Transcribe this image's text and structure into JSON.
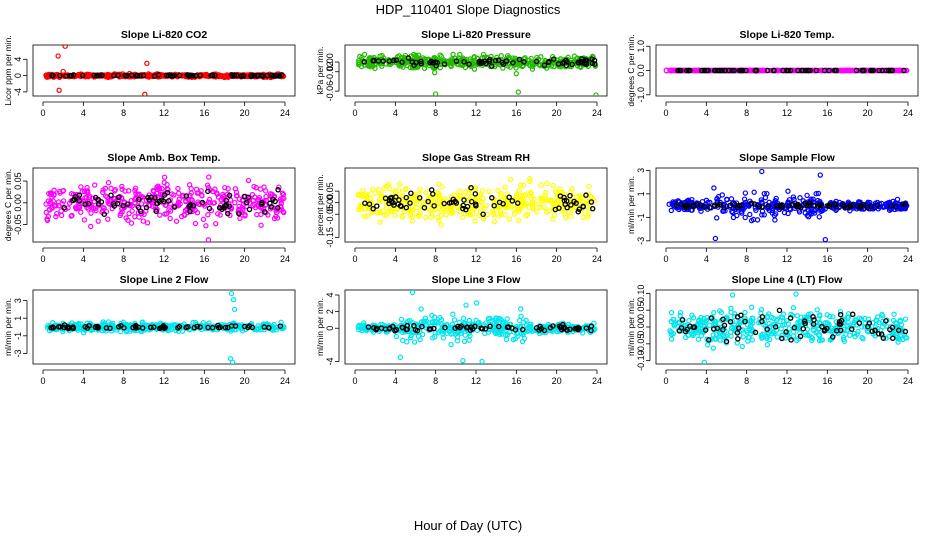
{
  "figure": {
    "title": "HDP_110401  Slope Diagnostics",
    "xlabel": "Hour of Day (UTC)"
  },
  "colors": {
    "red": "#ff0000",
    "green": "#22bb00",
    "magenta": "#ff00ff",
    "yellow": "#ffff00",
    "blue": "#0000ff",
    "cyan": "#00e5ee",
    "black": "#000000"
  },
  "chart_data": [
    {
      "type": "scatter",
      "title": "Slope Li-820 CO2",
      "ylabel": "Licor ppm per min.",
      "xlim": [
        0,
        24
      ],
      "xticks": [
        "0",
        "4",
        "8",
        "12",
        "16",
        "20",
        "24"
      ],
      "ylim": [
        -5,
        7.5
      ],
      "yticks": [
        {
          "v": -4,
          "t": "-4"
        },
        {
          "v": 0,
          "t": "0"
        },
        {
          "v": 4,
          "t": "4"
        }
      ],
      "color": "red",
      "spread": 0.35,
      "outliers": [
        [
          2.2,
          7.2
        ],
        [
          1.5,
          4.8
        ],
        [
          1.6,
          -3.6
        ],
        [
          10.3,
          3.0
        ],
        [
          10.1,
          -4.6
        ],
        [
          2.0,
          1.0
        ]
      ],
      "black_spread": 0.15
    },
    {
      "type": "scatter",
      "title": "Slope Li-820 Pressure",
      "ylabel": "kPa per min.",
      "xlim": [
        0,
        24
      ],
      "xticks": [
        "0",
        "4",
        "8",
        "12",
        "16",
        "20",
        "24"
      ],
      "ylim": [
        -0.07,
        0.035
      ],
      "yticks": [
        {
          "v": -0.06,
          "t": "-0.06"
        },
        {
          "v": -0.02,
          "t": "-0.02"
        },
        {
          "v": 0,
          "t": "0.00"
        }
      ],
      "color": "green",
      "spread": 0.012,
      "outliers": [
        [
          8.0,
          -0.066
        ],
        [
          16.2,
          -0.062
        ],
        [
          23.9,
          -0.068
        ],
        [
          7.9,
          -0.022
        ],
        [
          16.0,
          -0.024
        ]
      ],
      "black_spread": 0.008
    },
    {
      "type": "scatter",
      "title": "Slope Li-820 Temp.",
      "ylabel": "degrees C per min.",
      "xlim": [
        0,
        24
      ],
      "xticks": [
        "0",
        "4",
        "8",
        "12",
        "16",
        "20",
        "24"
      ],
      "ylim": [
        -1.05,
        1.05
      ],
      "yticks": [
        {
          "v": -1,
          "t": "-1.0"
        },
        {
          "v": 0,
          "t": "0.0"
        },
        {
          "v": 1,
          "t": "1.0"
        }
      ],
      "color": "magenta",
      "spread": 0.0,
      "outliers": [],
      "black_spread": 0.0
    },
    {
      "type": "scatter",
      "title": "Slope Amb. Box Temp.",
      "ylabel": "degrees C per min.",
      "xlim": [
        0,
        24
      ],
      "xticks": [
        "0",
        "4",
        "8",
        "12",
        "16",
        "20",
        "24"
      ],
      "ylim": [
        -0.09,
        0.08
      ],
      "yticks": [
        {
          "v": -0.05,
          "t": "-0.05"
        },
        {
          "v": 0,
          "t": "0.00"
        },
        {
          "v": 0.05,
          "t": "0.05"
        }
      ],
      "color": "magenta",
      "spread": 0.04,
      "outliers": [
        [
          16.4,
          -0.085
        ]
      ],
      "black_spread": 0.025
    },
    {
      "type": "scatter",
      "title": "Slope Gas Stream RH",
      "ylabel": "percent per min.",
      "xlim": [
        0,
        24
      ],
      "xticks": [
        "0",
        "4",
        "8",
        "12",
        "16",
        "20",
        "24"
      ],
      "ylim": [
        -0.17,
        0.15
      ],
      "yticks": [
        {
          "v": -0.15,
          "t": "-0.15"
        },
        {
          "v": -0.05,
          "t": "-0.05"
        },
        {
          "v": 0,
          "t": "0.00"
        },
        {
          "v": 0.05,
          "t": "0.05"
        }
      ],
      "color": "yellow",
      "spread": 0.07,
      "outliers": [],
      "black_spread": 0.05
    },
    {
      "type": "scatter",
      "title": "Slope Sample Flow",
      "ylabel": "ml/min per min.",
      "xlim": [
        0,
        24
      ],
      "xticks": [
        "0",
        "4",
        "8",
        "12",
        "16",
        "20",
        "24"
      ],
      "ylim": [
        -3.1,
        3.2
      ],
      "yticks": [
        {
          "v": -3,
          "t": "-3"
        },
        {
          "v": -1,
          "t": "-1"
        },
        {
          "v": 1,
          "t": "1"
        },
        {
          "v": 3,
          "t": "3"
        }
      ],
      "color": "blue",
      "spread": 0.35,
      "outliers": [
        [
          9.5,
          2.9
        ],
        [
          15.3,
          2.6
        ],
        [
          15.8,
          -2.9
        ],
        [
          4.9,
          -2.8
        ]
      ],
      "black_spread": 0.2,
      "wild": [
        4,
        16,
        2.2
      ]
    },
    {
      "type": "scatter",
      "title": "Slope Line 2 Flow",
      "ylabel": "ml/min per min.",
      "xlim": [
        0,
        24
      ],
      "xticks": [
        "0",
        "4",
        "8",
        "12",
        "16",
        "20",
        "24"
      ],
      "ylim": [
        -4.2,
        4.2
      ],
      "yticks": [
        {
          "v": -3,
          "t": "-3"
        },
        {
          "v": -1,
          "t": "-1"
        },
        {
          "v": 1,
          "t": "1"
        },
        {
          "v": 3,
          "t": "3"
        }
      ],
      "color": "cyan",
      "spread": 0.45,
      "outliers": [
        [
          18.7,
          3.8
        ],
        [
          18.9,
          3.1
        ],
        [
          18.6,
          -3.6
        ],
        [
          18.8,
          -4.0
        ],
        [
          19.0,
          2.0
        ]
      ],
      "black_spread": 0.15
    },
    {
      "type": "scatter",
      "title": "Slope Line 3 Flow",
      "ylabel": "ml/min per min.",
      "xlim": [
        0,
        24
      ],
      "xticks": [
        "0",
        "4",
        "8",
        "12",
        "16",
        "20",
        "24"
      ],
      "ylim": [
        -4.3,
        4.6
      ],
      "yticks": [
        {
          "v": -4,
          "t": "-4"
        },
        {
          "v": 0,
          "t": "0"
        },
        {
          "v": 2,
          "t": "2"
        },
        {
          "v": 4,
          "t": "4"
        }
      ],
      "color": "cyan",
      "spread": 0.5,
      "outliers": [
        [
          5.7,
          4.3
        ],
        [
          4.5,
          -3.5
        ],
        [
          10.7,
          -3.9
        ],
        [
          12.6,
          -4.0
        ]
      ],
      "black_spread": 0.3,
      "wild": [
        4,
        17,
        2.6
      ]
    },
    {
      "type": "scatter",
      "title": "Slope Line 4 (LT) Flow",
      "ylabel": "ml/min per min.",
      "xlim": [
        0,
        24
      ],
      "xticks": [
        "0",
        "4",
        "8",
        "12",
        "16",
        "20",
        "24"
      ],
      "ylim": [
        -0.11,
        0.11
      ],
      "yticks": [
        {
          "v": -0.1,
          "t": "-0.10"
        },
        {
          "v": -0.05,
          "t": "-0.05"
        },
        {
          "v": 0,
          "t": "0.00"
        },
        {
          "v": 0.05,
          "t": "0.05"
        },
        {
          "v": 0.1,
          "t": "0.10"
        }
      ],
      "color": "cyan",
      "spread": 0.045,
      "outliers": [
        [
          3.8,
          -0.105
        ],
        [
          12.9,
          0.098
        ],
        [
          6.6,
          0.095
        ]
      ],
      "black_spread": 0.04
    }
  ]
}
